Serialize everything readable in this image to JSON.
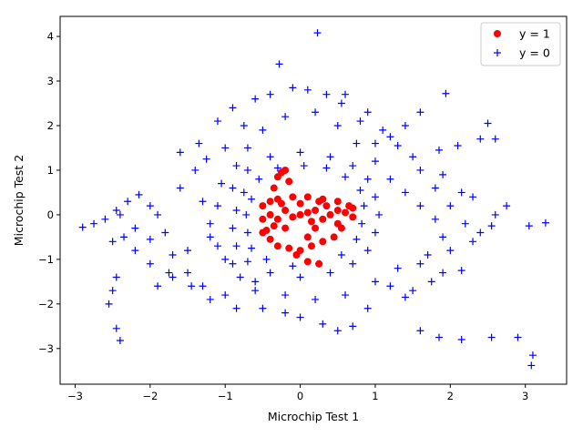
{
  "chart_data": {
    "type": "scatter",
    "title": "",
    "xlabel": "Microchip Test 1",
    "ylabel": "Microchip Test 2",
    "xlim": [
      -3.2,
      3.55
    ],
    "ylim": [
      -3.8,
      4.45
    ],
    "xticks": [
      -3,
      -2,
      -1,
      0,
      1,
      2,
      3
    ],
    "yticks": [
      -3,
      -2,
      -1,
      0,
      1,
      2,
      3,
      4
    ],
    "grid": false,
    "legend_position": "top-right",
    "series": [
      {
        "name": "y = 1",
        "marker": "circle",
        "color": "#ff0000",
        "points": [
          [
            0.0,
            0.0
          ],
          [
            0.1,
            0.05
          ],
          [
            -0.1,
            -0.05
          ],
          [
            0.2,
            0.1
          ],
          [
            -0.2,
            0.1
          ],
          [
            0.3,
            -0.1
          ],
          [
            -0.3,
            -0.1
          ],
          [
            0.4,
            0.0
          ],
          [
            -0.4,
            0.0
          ],
          [
            0.5,
            0.1
          ],
          [
            -0.5,
            -0.1
          ],
          [
            0.6,
            0.05
          ],
          [
            0.7,
            -0.05
          ],
          [
            0.65,
            0.2
          ],
          [
            0.55,
            -0.3
          ],
          [
            0.45,
            -0.5
          ],
          [
            0.3,
            -0.6
          ],
          [
            0.15,
            -0.7
          ],
          [
            0.0,
            -0.8
          ],
          [
            -0.15,
            -0.75
          ],
          [
            -0.3,
            -0.7
          ],
          [
            -0.4,
            -0.55
          ],
          [
            -0.45,
            -0.35
          ],
          [
            -0.5,
            0.2
          ],
          [
            -0.4,
            0.3
          ],
          [
            -0.3,
            0.35
          ],
          [
            -0.1,
            0.4
          ],
          [
            0.1,
            0.4
          ],
          [
            0.3,
            0.35
          ],
          [
            0.5,
            0.3
          ],
          [
            0.7,
            0.15
          ],
          [
            0.2,
            -0.3
          ],
          [
            -0.2,
            -0.3
          ],
          [
            0.0,
            0.25
          ],
          [
            0.35,
            0.2
          ],
          [
            -0.25,
            0.25
          ],
          [
            0.1,
            -0.5
          ],
          [
            -0.05,
            -0.9
          ],
          [
            0.1,
            -1.05
          ],
          [
            0.25,
            -1.1
          ],
          [
            -0.25,
            0.95
          ],
          [
            -0.3,
            0.85
          ],
          [
            -0.15,
            0.75
          ],
          [
            -0.35,
            0.6
          ],
          [
            -0.2,
            1.0
          ],
          [
            0.5,
            -0.2
          ],
          [
            -0.5,
            -0.4
          ],
          [
            0.25,
            0.3
          ],
          [
            -0.35,
            -0.25
          ],
          [
            0.15,
            -0.15
          ]
        ]
      },
      {
        "name": "y = 0",
        "marker": "plus",
        "color": "#0000ff",
        "points": [
          [
            0.23,
            4.08
          ],
          [
            -0.28,
            3.38
          ],
          [
            1.94,
            2.72
          ],
          [
            -2.9,
            -0.28
          ],
          [
            -2.75,
            -0.2
          ],
          [
            -2.6,
            -0.1
          ],
          [
            -2.45,
            0.1
          ],
          [
            -2.3,
            0.3
          ],
          [
            -2.15,
            0.45
          ],
          [
            -2.5,
            -0.6
          ],
          [
            -2.35,
            -0.5
          ],
          [
            -2.2,
            -0.8
          ],
          [
            -2.45,
            -1.4
          ],
          [
            -2.5,
            -1.7
          ],
          [
            -2.55,
            -2.0
          ],
          [
            -2.45,
            -2.55
          ],
          [
            -2.4,
            -2.82
          ],
          [
            -2.0,
            -1.1
          ],
          [
            -1.9,
            -1.6
          ],
          [
            -1.75,
            -1.3
          ],
          [
            -1.6,
            1.4
          ],
          [
            -1.35,
            1.6
          ],
          [
            -1.1,
            2.1
          ],
          [
            -0.9,
            2.4
          ],
          [
            -0.6,
            2.6
          ],
          [
            -0.4,
            2.7
          ],
          [
            -0.1,
            2.85
          ],
          [
            0.1,
            2.8
          ],
          [
            0.35,
            2.7
          ],
          [
            0.55,
            2.5
          ],
          [
            0.8,
            2.1
          ],
          [
            1.0,
            1.6
          ],
          [
            1.2,
            1.75
          ],
          [
            1.4,
            2.0
          ],
          [
            1.6,
            2.3
          ],
          [
            1.85,
            1.45
          ],
          [
            2.1,
            1.55
          ],
          [
            2.4,
            1.7
          ],
          [
            2.5,
            2.05
          ],
          [
            2.6,
            1.7
          ],
          [
            2.75,
            0.2
          ],
          [
            2.55,
            -0.25
          ],
          [
            3.05,
            -0.25
          ],
          [
            3.27,
            -0.18
          ],
          [
            2.3,
            0.4
          ],
          [
            2.15,
            0.5
          ],
          [
            1.9,
            0.9
          ],
          [
            1.6,
            1.0
          ],
          [
            1.6,
            -2.6
          ],
          [
            1.85,
            -2.75
          ],
          [
            2.15,
            -2.8
          ],
          [
            2.55,
            -2.75
          ],
          [
            2.9,
            -2.75
          ],
          [
            3.1,
            -3.15
          ],
          [
            3.08,
            -3.38
          ],
          [
            2.15,
            -1.25
          ],
          [
            1.9,
            -1.3
          ],
          [
            1.6,
            -1.1
          ],
          [
            1.4,
            -1.85
          ],
          [
            1.2,
            -1.6
          ],
          [
            0.9,
            -2.1
          ],
          [
            0.7,
            -2.5
          ],
          [
            0.5,
            -2.6
          ],
          [
            0.3,
            -2.45
          ],
          [
            0.0,
            -2.3
          ],
          [
            -0.2,
            -2.2
          ],
          [
            -0.5,
            -2.1
          ],
          [
            -0.85,
            -2.1
          ],
          [
            -1.2,
            -1.9
          ],
          [
            -1.45,
            -1.6
          ],
          [
            -1.7,
            -1.4
          ],
          [
            -1.5,
            -0.8
          ],
          [
            -1.2,
            -0.5
          ],
          [
            -1.0,
            -1.0
          ],
          [
            -0.8,
            -1.4
          ],
          [
            -0.6,
            -1.7
          ],
          [
            -1.3,
            0.3
          ],
          [
            -1.05,
            0.7
          ],
          [
            -0.85,
            1.1
          ],
          [
            -0.7,
            1.5
          ],
          [
            -0.5,
            1.9
          ],
          [
            -0.2,
            2.2
          ],
          [
            0.2,
            2.3
          ],
          [
            0.5,
            2.0
          ],
          [
            0.75,
            1.6
          ],
          [
            1.0,
            1.2
          ],
          [
            1.2,
            0.8
          ],
          [
            1.4,
            0.5
          ],
          [
            1.6,
            0.2
          ],
          [
            1.8,
            -0.1
          ],
          [
            1.9,
            -0.5
          ],
          [
            1.7,
            -0.9
          ],
          [
            1.3,
            -1.2
          ],
          [
            1.0,
            -1.5
          ],
          [
            0.6,
            -1.8
          ],
          [
            0.2,
            -1.9
          ],
          [
            -0.2,
            -1.8
          ],
          [
            -0.6,
            -1.5
          ],
          [
            -0.9,
            -1.1
          ],
          [
            -1.1,
            -0.7
          ],
          [
            -1.2,
            -0.2
          ],
          [
            -1.1,
            0.2
          ],
          [
            -0.9,
            0.6
          ],
          [
            -0.7,
            1.0
          ],
          [
            -0.4,
            1.3
          ],
          [
            0.0,
            1.4
          ],
          [
            0.4,
            1.3
          ],
          [
            0.7,
            1.1
          ],
          [
            0.9,
            0.8
          ],
          [
            1.0,
            0.4
          ],
          [
            1.05,
            0.0
          ],
          [
            1.0,
            -0.4
          ],
          [
            0.9,
            -0.8
          ],
          [
            0.7,
            -1.1
          ],
          [
            0.4,
            -1.3
          ],
          [
            0.0,
            -1.4
          ],
          [
            -0.4,
            -1.3
          ],
          [
            -0.7,
            -1.05
          ],
          [
            -0.85,
            -0.7
          ],
          [
            -0.9,
            -0.3
          ],
          [
            -0.85,
            0.1
          ],
          [
            -0.75,
            0.5
          ],
          [
            -0.55,
            0.8
          ],
          [
            -0.3,
            1.05
          ],
          [
            0.05,
            1.1
          ],
          [
            0.35,
            1.05
          ],
          [
            0.6,
            0.85
          ],
          [
            0.8,
            0.55
          ],
          [
            0.85,
            0.2
          ],
          [
            0.82,
            -0.2
          ],
          [
            0.75,
            -0.55
          ],
          [
            0.55,
            -0.9
          ],
          [
            0.25,
            -1.1
          ],
          [
            -0.1,
            -1.15
          ],
          [
            -0.45,
            -1.0
          ],
          [
            -0.65,
            -0.75
          ],
          [
            -0.7,
            -0.4
          ],
          [
            -0.72,
            0.0
          ],
          [
            -0.65,
            0.35
          ],
          [
            -2.0,
            0.2
          ],
          [
            -1.8,
            -0.4
          ],
          [
            -1.6,
            0.6
          ],
          [
            -1.4,
            1.0
          ],
          [
            -1.9,
            0.0
          ],
          [
            -1.7,
            -0.9
          ],
          [
            -1.5,
            -1.3
          ],
          [
            -1.3,
            -1.6
          ],
          [
            -1.0,
            -1.8
          ],
          [
            1.5,
            1.3
          ],
          [
            1.8,
            0.6
          ],
          [
            2.0,
            0.2
          ],
          [
            2.2,
            -0.2
          ],
          [
            2.4,
            -0.4
          ],
          [
            2.0,
            -0.8
          ],
          [
            1.75,
            -1.5
          ],
          [
            1.5,
            -1.7
          ],
          [
            2.6,
            0.0
          ],
          [
            2.3,
            -0.6
          ],
          [
            -2.2,
            -0.3
          ],
          [
            -2.4,
            0.0
          ],
          [
            -2.0,
            -0.55
          ],
          [
            -1.0,
            1.5
          ],
          [
            -1.25,
            1.25
          ],
          [
            1.3,
            1.55
          ],
          [
            1.1,
            1.9
          ],
          [
            0.9,
            2.3
          ],
          [
            0.6,
            2.7
          ],
          [
            -0.75,
            2.0
          ]
        ]
      }
    ]
  }
}
